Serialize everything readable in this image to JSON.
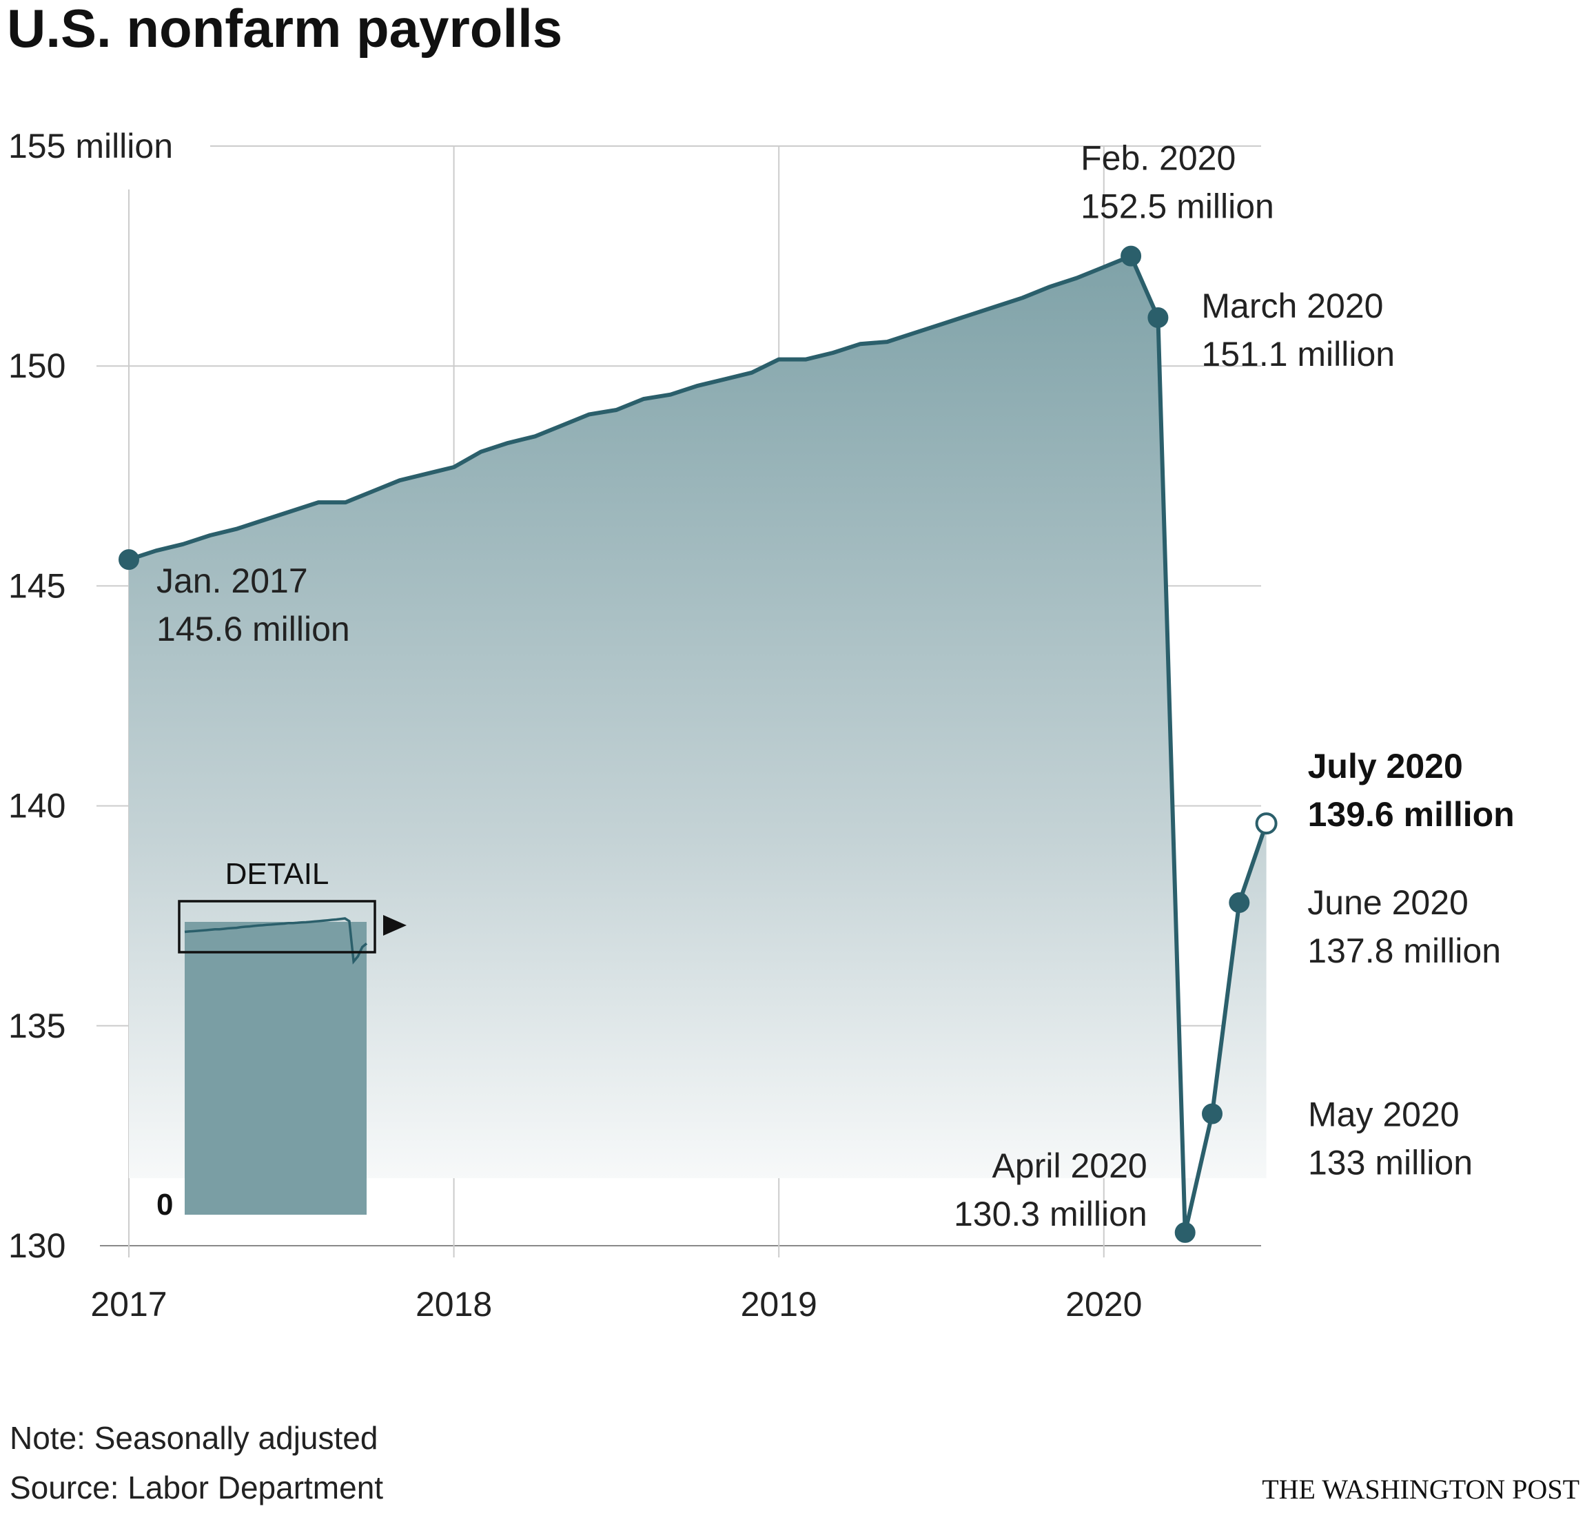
{
  "title": "U.S. nonfarm payrolls",
  "footer": {
    "note": "Note: Seasonally adjusted",
    "source": "Source: Labor Department",
    "brand": "THE WASHINGTON POST"
  },
  "colors": {
    "line": "#2b5f6b",
    "area_top": "#7fa2a8",
    "area_bottom": "#ffffff",
    "grid": "#cccccc",
    "detail_fill": "#7a9ea4"
  },
  "chart_data": {
    "type": "area",
    "title": "U.S. nonfarm payrolls",
    "xlabel": "",
    "ylabel": "",
    "ylim": [
      130,
      155
    ],
    "unit": "million",
    "y_ticks": [
      {
        "value": 155,
        "label": "155 million"
      },
      {
        "value": 150,
        "label": "150"
      },
      {
        "value": 145,
        "label": "145"
      },
      {
        "value": 140,
        "label": "140"
      },
      {
        "value": 135,
        "label": "135"
      },
      {
        "value": 130,
        "label": "130"
      }
    ],
    "x_ticks": [
      {
        "year": 2017,
        "label": "2017"
      },
      {
        "year": 2018,
        "label": "2018"
      },
      {
        "year": 2019,
        "label": "2019"
      },
      {
        "year": 2020,
        "label": "2020"
      }
    ],
    "grid": true,
    "x": [
      "2017-01",
      "2017-02",
      "2017-03",
      "2017-04",
      "2017-05",
      "2017-06",
      "2017-07",
      "2017-08",
      "2017-09",
      "2017-10",
      "2017-11",
      "2017-12",
      "2018-01",
      "2018-02",
      "2018-03",
      "2018-04",
      "2018-05",
      "2018-06",
      "2018-07",
      "2018-08",
      "2018-09",
      "2018-10",
      "2018-11",
      "2018-12",
      "2019-01",
      "2019-02",
      "2019-03",
      "2019-04",
      "2019-05",
      "2019-06",
      "2019-07",
      "2019-08",
      "2019-09",
      "2019-10",
      "2019-11",
      "2019-12",
      "2020-01",
      "2020-02",
      "2020-03",
      "2020-04",
      "2020-05",
      "2020-06",
      "2020-07"
    ],
    "values": [
      145.6,
      145.8,
      145.95,
      146.15,
      146.3,
      146.5,
      146.7,
      146.9,
      146.9,
      147.15,
      147.4,
      147.55,
      147.7,
      148.05,
      148.25,
      148.4,
      148.65,
      148.9,
      149.0,
      149.25,
      149.35,
      149.55,
      149.7,
      149.85,
      150.15,
      150.15,
      150.3,
      150.5,
      150.55,
      150.75,
      150.95,
      151.15,
      151.35,
      151.55,
      151.8,
      152.0,
      152.25,
      152.5,
      151.1,
      130.3,
      133.0,
      137.8,
      139.6
    ],
    "annotations": [
      {
        "date": "2017-01",
        "label": "Jan. 2017",
        "value_label": "145.6 million",
        "bold": false
      },
      {
        "date": "2020-02",
        "label": "Feb. 2020",
        "value_label": "152.5 million",
        "bold": false
      },
      {
        "date": "2020-03",
        "label": "March 2020",
        "value_label": "151.1 million",
        "bold": false
      },
      {
        "date": "2020-04",
        "label": "April 2020",
        "value_label": "130.3 million",
        "bold": false
      },
      {
        "date": "2020-05",
        "label": "May 2020",
        "value_label": "133 million",
        "bold": false
      },
      {
        "date": "2020-06",
        "label": "June 2020",
        "value_label": "137.8 million",
        "bold": false
      },
      {
        "date": "2020-07",
        "label": "July 2020",
        "value_label": "139.6 million",
        "bold": true
      }
    ],
    "inset": {
      "label": "DETAIL",
      "zero_label": "0",
      "ylim": [
        0,
        155
      ]
    }
  }
}
